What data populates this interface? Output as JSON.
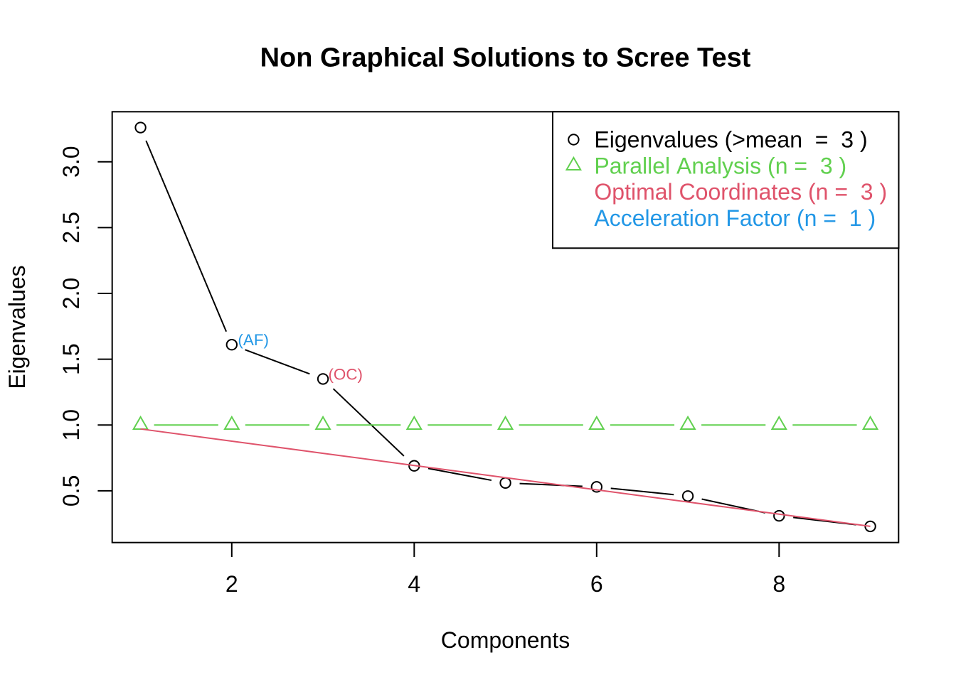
{
  "chart_data": {
    "type": "line",
    "title": "Non Graphical Solutions to Scree Test",
    "xlabel": "Components",
    "ylabel": "Eigenvalues",
    "x": [
      1,
      2,
      3,
      4,
      5,
      6,
      7,
      8,
      9
    ],
    "xlim": [
      0.689,
      9.31
    ],
    "ylim": [
      0.107,
      3.38
    ],
    "xticks": [
      2,
      4,
      6,
      8
    ],
    "xtick_labels": [
      "2",
      "4",
      "6",
      "8"
    ],
    "yticks": [
      0.5,
      1.0,
      1.5,
      2.0,
      2.5,
      3.0
    ],
    "ytick_labels": [
      "0.5",
      "1.0",
      "1.5",
      "2.0",
      "2.5",
      "3.0"
    ],
    "grid": false,
    "series": [
      {
        "name": "eigenvalues",
        "color": "#000000",
        "marker": "circle",
        "line_type": "points-and-segments",
        "values": [
          3.26,
          1.61,
          1.35,
          0.69,
          0.56,
          0.53,
          0.46,
          0.31,
          0.23
        ]
      },
      {
        "name": "parallel-analysis",
        "color": "#61D04F",
        "marker": "triangle",
        "line_type": "points-and-segments",
        "values": [
          1.0,
          1.0,
          1.0,
          1.0,
          1.0,
          1.0,
          1.0,
          1.0,
          1.0
        ]
      },
      {
        "name": "optimal-coordinates",
        "color": "#DF536B",
        "marker": "none",
        "line_type": "solid",
        "values": [
          0.97,
          0.8775,
          0.785,
          0.6925,
          0.6,
          0.5075,
          0.415,
          0.3225,
          0.23
        ]
      }
    ],
    "annotations": [
      {
        "text": "(AF)",
        "color": "#2297E6",
        "at_x": 2,
        "at_y": 1.61,
        "dx": 8.6,
        "dy": 1.0
      },
      {
        "text": "(OC)",
        "color": "#DF536B",
        "at_x": 3,
        "at_y": 1.35,
        "dx": 7.4,
        "dy": 1.0
      }
    ],
    "legend": {
      "position": "topright",
      "entries": [
        {
          "label": "Eigenvalues (>mean  =  3 )",
          "color": "#000000",
          "marker": "circle"
        },
        {
          "label": "Parallel Analysis (n =  3 )",
          "color": "#61D04F",
          "marker": "triangle"
        },
        {
          "label": "Optimal Coordinates (n =  3 )",
          "color": "#DF536B",
          "marker": "none"
        },
        {
          "label": "Acceleration Factor (n =  1 )",
          "color": "#2297E6",
          "marker": "none"
        }
      ]
    },
    "n_components_results": {
      "eigenvalues_gt_mean": 3,
      "parallel_analysis": 3,
      "optimal_coordinates": 3,
      "acceleration_factor": 1
    }
  }
}
